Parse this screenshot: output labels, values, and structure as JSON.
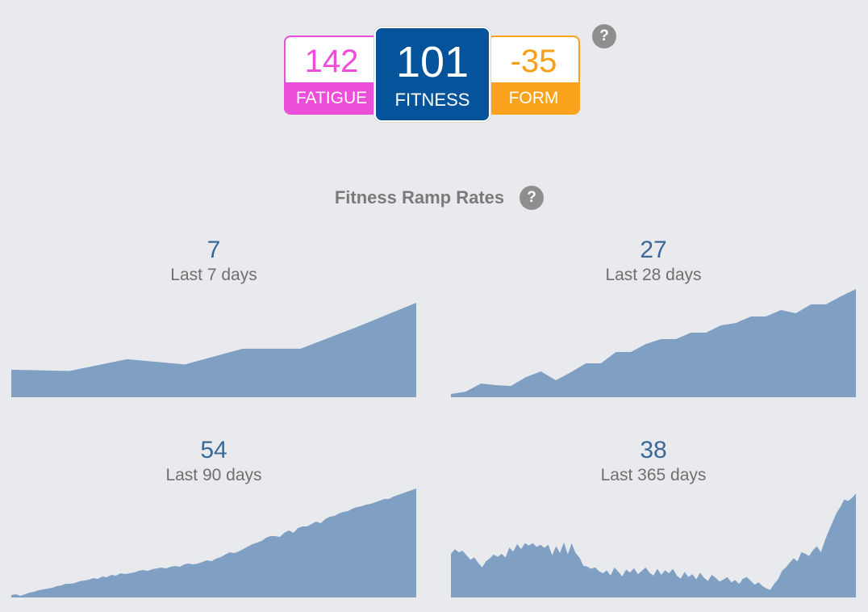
{
  "summary": {
    "fatigue": {
      "value": "142",
      "label": "FATIGUE",
      "color": "#ec4dd9"
    },
    "fitness": {
      "value": "101",
      "label": "FITNESS",
      "color": "#05549b"
    },
    "form": {
      "value": "-35",
      "label": "FORM",
      "color": "#fba21c"
    },
    "help_glyph": "?",
    "help_icon": "question-circle-icon"
  },
  "ramp": {
    "title": "Fitness Ramp Rates",
    "help_glyph": "?",
    "area_color": "#7fa0c3",
    "panels": [
      {
        "value": "7",
        "caption": "Last 7 days",
        "chart_data": {
          "type": "area",
          "values": [
            21,
            20,
            29,
            25,
            37,
            37,
            54,
            72
          ],
          "ylim": [
            0,
            80
          ]
        }
      },
      {
        "value": "27",
        "caption": "Last 28 days",
        "chart_data": {
          "type": "area",
          "values": [
            4,
            7,
            17,
            15,
            14,
            25,
            32,
            21,
            31,
            42,
            42,
            56,
            56,
            66,
            72,
            72,
            80,
            80,
            89,
            92,
            100,
            100,
            108,
            104,
            115,
            115,
            125,
            134
          ],
          "ylim": [
            0,
            140
          ]
        }
      },
      {
        "value": "54",
        "caption": "Last 90 days",
        "chart_data": {
          "type": "area",
          "values": [
            3,
            4,
            2,
            4,
            6,
            7,
            9,
            10,
            11,
            12,
            14,
            15,
            17,
            17,
            18,
            20,
            21,
            22,
            24,
            23,
            26,
            25,
            28,
            27,
            30,
            29,
            30,
            31,
            33,
            34,
            33,
            35,
            36,
            37,
            36,
            38,
            39,
            38,
            41,
            42,
            41,
            42,
            44,
            46,
            45,
            48,
            50,
            53,
            56,
            55,
            57,
            60,
            63,
            66,
            68,
            70,
            74,
            76,
            76,
            75,
            80,
            83,
            80,
            86,
            88,
            88,
            91,
            94,
            92,
            97,
            100,
            101,
            104,
            106,
            107,
            110,
            112,
            113,
            115,
            116,
            118,
            120,
            122,
            122,
            125,
            127,
            129,
            131,
            133,
            135
          ],
          "ylim": [
            0,
            140
          ]
        }
      },
      {
        "value": "38",
        "caption": "Last 365 days",
        "chart_data": {
          "type": "area",
          "values": [
            58,
            64,
            60,
            62,
            56,
            50,
            53,
            46,
            40,
            48,
            52,
            57,
            54,
            58,
            53,
            66,
            61,
            71,
            64,
            72,
            69,
            72,
            67,
            70,
            66,
            70,
            56,
            68,
            59,
            73,
            57,
            72,
            59,
            53,
            42,
            41,
            38,
            40,
            35,
            32,
            36,
            29,
            40,
            34,
            28,
            37,
            33,
            39,
            31,
            35,
            40,
            33,
            29,
            38,
            30,
            36,
            32,
            38,
            29,
            25,
            34,
            27,
            31,
            24,
            33,
            26,
            22,
            30,
            26,
            21,
            24,
            27,
            20,
            23,
            18,
            25,
            27,
            22,
            17,
            20,
            15,
            12,
            10,
            18,
            24,
            35,
            40,
            46,
            52,
            48,
            60,
            58,
            55,
            63,
            68,
            60,
            75,
            88,
            100,
            112,
            120,
            130,
            128,
            132,
            138
          ],
          "ylim": [
            0,
            150
          ]
        }
      }
    ]
  }
}
